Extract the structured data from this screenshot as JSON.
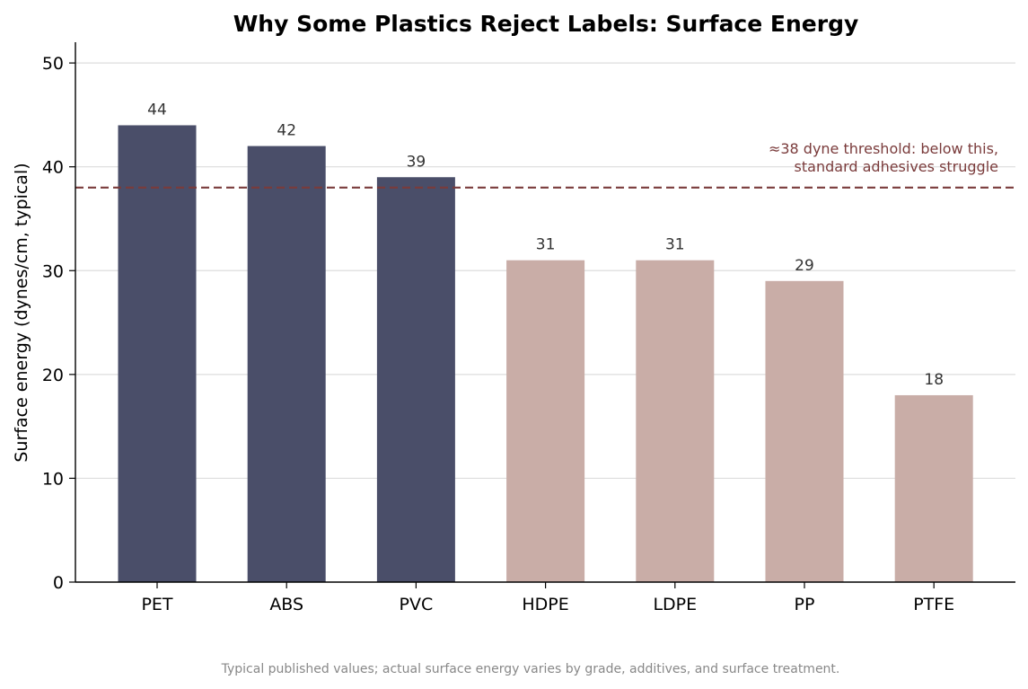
{
  "chart_data": {
    "type": "bar",
    "title": "Why Some Plastics Reject Labels: Surface Energy",
    "xlabel": "",
    "ylabel": "Surface energy (dynes/cm, typical)",
    "categories": [
      "PET",
      "ABS",
      "PVC",
      "HDPE",
      "LDPE",
      "PP",
      "PTFE"
    ],
    "values": [
      44,
      42,
      39,
      31,
      31,
      29,
      18
    ],
    "data_labels": [
      "44",
      "42",
      "39",
      "31",
      "31",
      "29",
      "18"
    ],
    "ylim": [
      0,
      52
    ],
    "yticks": [
      0,
      10,
      20,
      30,
      40,
      50
    ],
    "grid": "horizontal",
    "threshold": {
      "value": 38,
      "style": "dashed",
      "annotation_lines": [
        "≈38 dyne threshold: below this,",
        "standard adhesives struggle"
      ]
    },
    "colors": {
      "above_threshold": "#4a4e69",
      "below_threshold": "#c9ada7",
      "threshold_line": "#7a3b3b",
      "grid": "#dddddd"
    },
    "footnote": "Typical published values; actual surface energy varies by grade, additives, and surface treatment."
  }
}
